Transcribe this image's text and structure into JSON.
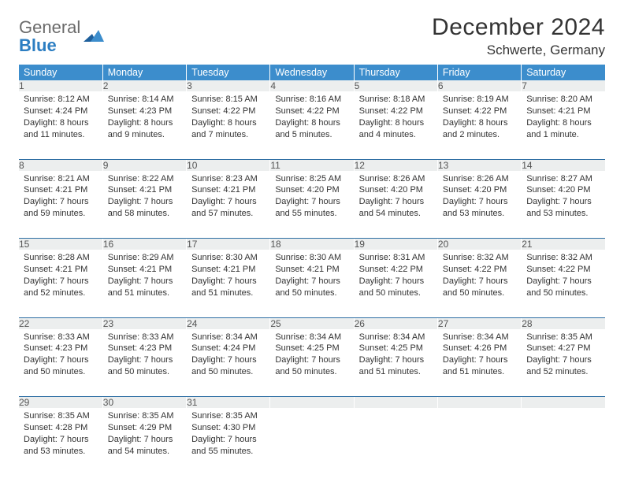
{
  "logo": {
    "word1": "General",
    "word2": "Blue"
  },
  "header": {
    "title": "December 2024",
    "location": "Schwerte, Germany"
  },
  "colors": {
    "header_bg": "#3c8dcc",
    "header_fg": "#ffffff",
    "daynum_bg": "#eceeee",
    "rule": "#2d6ea3",
    "logo_gray": "#6b6b6b",
    "logo_blue": "#2c7ec2"
  },
  "weekdays": [
    "Sunday",
    "Monday",
    "Tuesday",
    "Wednesday",
    "Thursday",
    "Friday",
    "Saturday"
  ],
  "weeks": [
    [
      {
        "n": "1",
        "sr": "8:12 AM",
        "ss": "4:24 PM",
        "dl": "8 hours and 11 minutes."
      },
      {
        "n": "2",
        "sr": "8:14 AM",
        "ss": "4:23 PM",
        "dl": "8 hours and 9 minutes."
      },
      {
        "n": "3",
        "sr": "8:15 AM",
        "ss": "4:22 PM",
        "dl": "8 hours and 7 minutes."
      },
      {
        "n": "4",
        "sr": "8:16 AM",
        "ss": "4:22 PM",
        "dl": "8 hours and 5 minutes."
      },
      {
        "n": "5",
        "sr": "8:18 AM",
        "ss": "4:22 PM",
        "dl": "8 hours and 4 minutes."
      },
      {
        "n": "6",
        "sr": "8:19 AM",
        "ss": "4:22 PM",
        "dl": "8 hours and 2 minutes."
      },
      {
        "n": "7",
        "sr": "8:20 AM",
        "ss": "4:21 PM",
        "dl": "8 hours and 1 minute."
      }
    ],
    [
      {
        "n": "8",
        "sr": "8:21 AM",
        "ss": "4:21 PM",
        "dl": "7 hours and 59 minutes."
      },
      {
        "n": "9",
        "sr": "8:22 AM",
        "ss": "4:21 PM",
        "dl": "7 hours and 58 minutes."
      },
      {
        "n": "10",
        "sr": "8:23 AM",
        "ss": "4:21 PM",
        "dl": "7 hours and 57 minutes."
      },
      {
        "n": "11",
        "sr": "8:25 AM",
        "ss": "4:20 PM",
        "dl": "7 hours and 55 minutes."
      },
      {
        "n": "12",
        "sr": "8:26 AM",
        "ss": "4:20 PM",
        "dl": "7 hours and 54 minutes."
      },
      {
        "n": "13",
        "sr": "8:26 AM",
        "ss": "4:20 PM",
        "dl": "7 hours and 53 minutes."
      },
      {
        "n": "14",
        "sr": "8:27 AM",
        "ss": "4:20 PM",
        "dl": "7 hours and 53 minutes."
      }
    ],
    [
      {
        "n": "15",
        "sr": "8:28 AM",
        "ss": "4:21 PM",
        "dl": "7 hours and 52 minutes."
      },
      {
        "n": "16",
        "sr": "8:29 AM",
        "ss": "4:21 PM",
        "dl": "7 hours and 51 minutes."
      },
      {
        "n": "17",
        "sr": "8:30 AM",
        "ss": "4:21 PM",
        "dl": "7 hours and 51 minutes."
      },
      {
        "n": "18",
        "sr": "8:30 AM",
        "ss": "4:21 PM",
        "dl": "7 hours and 50 minutes."
      },
      {
        "n": "19",
        "sr": "8:31 AM",
        "ss": "4:22 PM",
        "dl": "7 hours and 50 minutes."
      },
      {
        "n": "20",
        "sr": "8:32 AM",
        "ss": "4:22 PM",
        "dl": "7 hours and 50 minutes."
      },
      {
        "n": "21",
        "sr": "8:32 AM",
        "ss": "4:22 PM",
        "dl": "7 hours and 50 minutes."
      }
    ],
    [
      {
        "n": "22",
        "sr": "8:33 AM",
        "ss": "4:23 PM",
        "dl": "7 hours and 50 minutes."
      },
      {
        "n": "23",
        "sr": "8:33 AM",
        "ss": "4:23 PM",
        "dl": "7 hours and 50 minutes."
      },
      {
        "n": "24",
        "sr": "8:34 AM",
        "ss": "4:24 PM",
        "dl": "7 hours and 50 minutes."
      },
      {
        "n": "25",
        "sr": "8:34 AM",
        "ss": "4:25 PM",
        "dl": "7 hours and 50 minutes."
      },
      {
        "n": "26",
        "sr": "8:34 AM",
        "ss": "4:25 PM",
        "dl": "7 hours and 51 minutes."
      },
      {
        "n": "27",
        "sr": "8:34 AM",
        "ss": "4:26 PM",
        "dl": "7 hours and 51 minutes."
      },
      {
        "n": "28",
        "sr": "8:35 AM",
        "ss": "4:27 PM",
        "dl": "7 hours and 52 minutes."
      }
    ],
    [
      {
        "n": "29",
        "sr": "8:35 AM",
        "ss": "4:28 PM",
        "dl": "7 hours and 53 minutes."
      },
      {
        "n": "30",
        "sr": "8:35 AM",
        "ss": "4:29 PM",
        "dl": "7 hours and 54 minutes."
      },
      {
        "n": "31",
        "sr": "8:35 AM",
        "ss": "4:30 PM",
        "dl": "7 hours and 55 minutes."
      },
      null,
      null,
      null,
      null
    ]
  ],
  "labels": {
    "sunrise": "Sunrise:",
    "sunset": "Sunset:",
    "daylight": "Daylight:"
  }
}
